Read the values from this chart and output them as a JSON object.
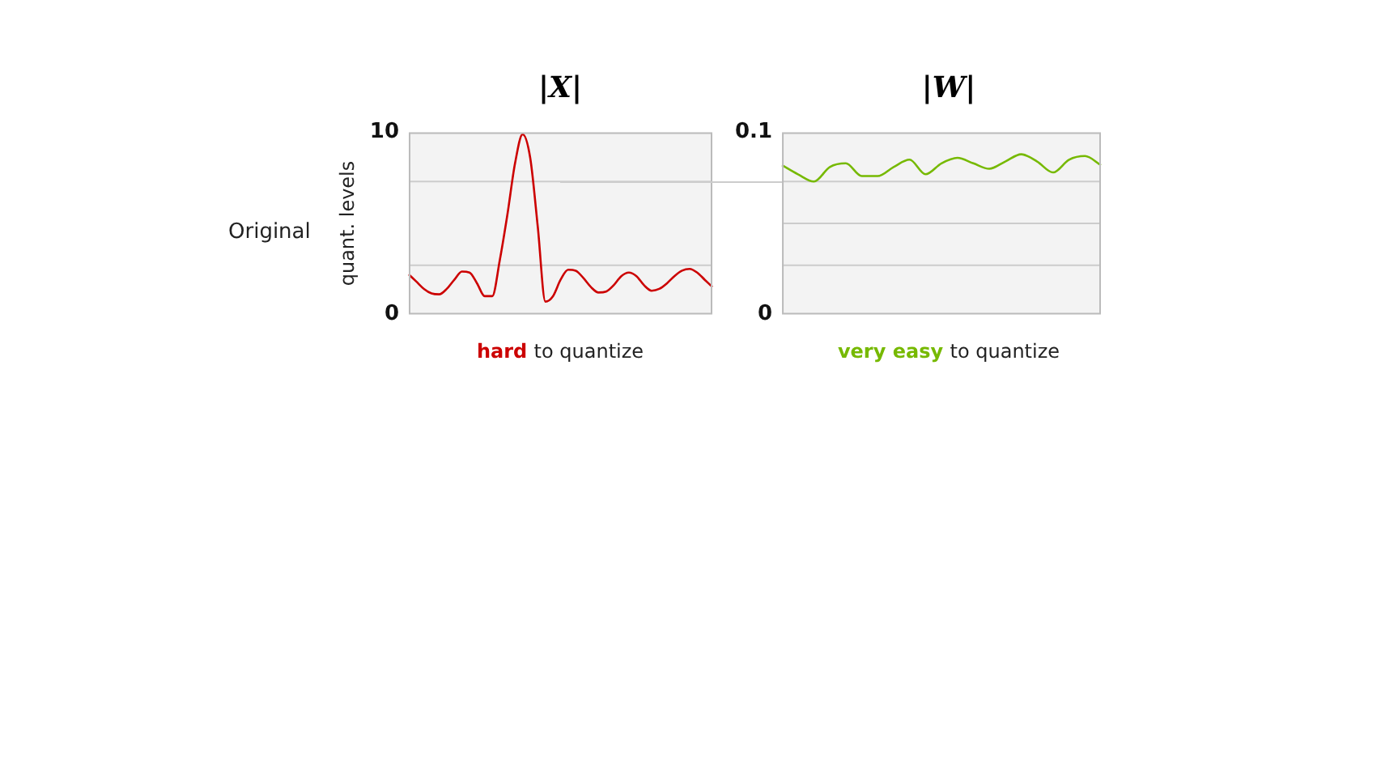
{
  "chart_data": [
    {
      "type": "line",
      "title": "|X|",
      "xlabel": "hard to quantize",
      "ylabel": "quant. levels",
      "annotations": [
        "Original"
      ],
      "color": "#cc0000",
      "categories": [
        null,
        null,
        null,
        null,
        null,
        null,
        null,
        null,
        null,
        null,
        null,
        null,
        null,
        null,
        null,
        null,
        null,
        null,
        null,
        null,
        null,
        null,
        null,
        null,
        null,
        null,
        null,
        null,
        null,
        null,
        null,
        null,
        null,
        null,
        null,
        null,
        null,
        null,
        null,
        null,
        null
      ],
      "values": [
        2.2,
        1.8,
        1.4,
        1.15,
        1.1,
        1.4,
        1.9,
        2.35,
        2.3,
        1.7,
        1.0,
        1.0,
        3.0,
        5.5,
        8.3,
        9.9,
        8.6,
        4.8,
        0.7,
        1.0,
        1.9,
        2.45,
        2.4,
        2.0,
        1.5,
        1.2,
        1.25,
        1.6,
        2.1,
        2.3,
        2.1,
        1.6,
        1.3,
        1.4,
        1.7,
        2.1,
        2.4,
        2.5,
        2.3,
        1.9,
        1.5
      ],
      "ylim": [
        0,
        10
      ],
      "yticks": [
        0,
        10
      ],
      "tick_labels": "y",
      "ref_lines": [
        {
          "axis": "y",
          "value": 7.3,
          "color": "#cccccc"
        },
        {
          "axis": "y",
          "value": 2.7,
          "color": "#cccccc"
        }
      ]
    },
    {
      "type": "line",
      "title": "|W|",
      "xlabel": "very easy to quantize",
      "color": "#76b900",
      "categories": [
        null,
        null,
        null,
        null,
        null,
        null,
        null,
        null,
        null,
        null,
        null,
        null,
        null,
        null,
        null,
        null,
        null,
        null,
        null,
        null,
        null
      ],
      "values": [
        0.082,
        0.077,
        0.073,
        0.081,
        0.083,
        0.076,
        0.076,
        0.081,
        0.085,
        0.077,
        0.083,
        0.086,
        0.083,
        0.08,
        0.084,
        0.088,
        0.084,
        0.078,
        0.085,
        0.087,
        0.082
      ],
      "ylim": [
        0,
        0.1
      ],
      "yticks": [
        0,
        0.1
      ],
      "tick_labels": "y",
      "ref_lines": [
        {
          "axis": "y",
          "value": 0.073,
          "color": "#cccccc"
        },
        {
          "axis": "y",
          "value": 0.05,
          "color": "#cccccc"
        },
        {
          "axis": "y",
          "value": 0.027,
          "color": "#cccccc"
        }
      ]
    }
  ]
}
